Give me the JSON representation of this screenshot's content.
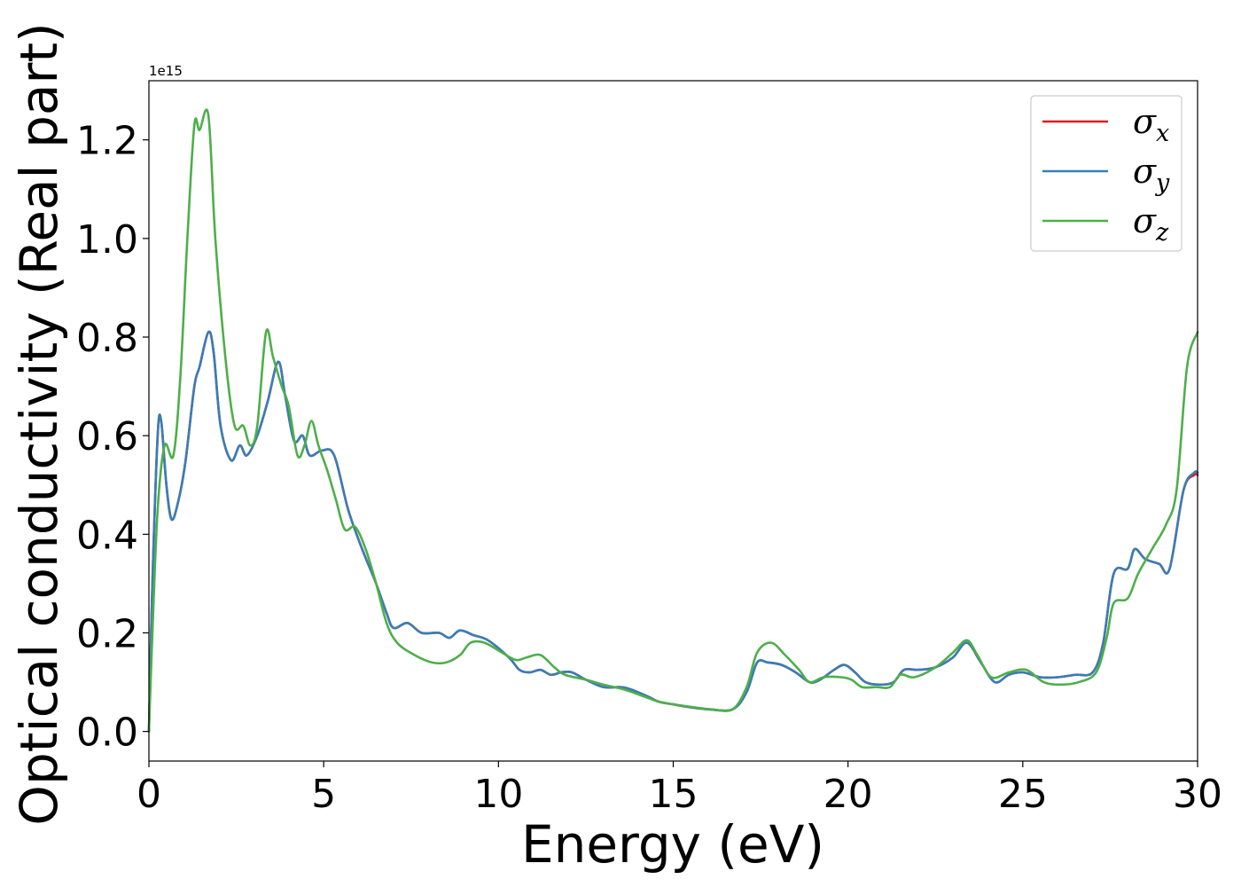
{
  "chart_data": {
    "type": "line",
    "title": "",
    "xlabel": "Energy (eV)",
    "ylabel": "Optical conductivity (Real part)",
    "y_offset_text": "1e15",
    "xlim": [
      0,
      30
    ],
    "ylim": [
      -0.06,
      1.32
    ],
    "xticks": [
      0,
      5,
      10,
      15,
      20,
      25,
      30
    ],
    "yticks": [
      0.0,
      0.2,
      0.4,
      0.6,
      0.8,
      1.0,
      1.2
    ],
    "xtick_labels": [
      "0",
      "5",
      "10",
      "15",
      "20",
      "25",
      "30"
    ],
    "ytick_labels": [
      "0.0",
      "0.2",
      "0.4",
      "0.6",
      "0.8",
      "1.0",
      "1.2"
    ],
    "grid": false,
    "legend_position": "top-right",
    "series": [
      {
        "name": "σx",
        "name_base": "σ",
        "name_sub": "x",
        "color": "#e41a1c",
        "points": [
          [
            0,
            0
          ],
          [
            0.1,
            0.3
          ],
          [
            0.25,
            0.6
          ],
          [
            0.35,
            0.63
          ],
          [
            0.5,
            0.5
          ],
          [
            0.65,
            0.43
          ],
          [
            0.85,
            0.47
          ],
          [
            1.05,
            0.55
          ],
          [
            1.3,
            0.7
          ],
          [
            1.45,
            0.74
          ],
          [
            1.7,
            0.81
          ],
          [
            1.85,
            0.77
          ],
          [
            2.05,
            0.62
          ],
          [
            2.35,
            0.55
          ],
          [
            2.6,
            0.58
          ],
          [
            2.8,
            0.56
          ],
          [
            3.1,
            0.6
          ],
          [
            3.4,
            0.67
          ],
          [
            3.7,
            0.75
          ],
          [
            3.9,
            0.68
          ],
          [
            4.15,
            0.59
          ],
          [
            4.4,
            0.6
          ],
          [
            4.6,
            0.56
          ],
          [
            4.95,
            0.57
          ],
          [
            5.3,
            0.56
          ],
          [
            5.7,
            0.45
          ],
          [
            6.1,
            0.37
          ],
          [
            6.5,
            0.3
          ],
          [
            6.8,
            0.24
          ],
          [
            7.0,
            0.21
          ],
          [
            7.4,
            0.22
          ],
          [
            7.8,
            0.2
          ],
          [
            8.3,
            0.2
          ],
          [
            8.6,
            0.19
          ],
          [
            8.9,
            0.205
          ],
          [
            9.3,
            0.195
          ],
          [
            9.7,
            0.185
          ],
          [
            10.3,
            0.15
          ],
          [
            10.6,
            0.125
          ],
          [
            10.9,
            0.12
          ],
          [
            11.2,
            0.125
          ],
          [
            11.5,
            0.115
          ],
          [
            11.8,
            0.12
          ],
          [
            12.1,
            0.12
          ],
          [
            12.5,
            0.105
          ],
          [
            13.0,
            0.09
          ],
          [
            13.5,
            0.09
          ],
          [
            13.8,
            0.085
          ],
          [
            14.3,
            0.07
          ],
          [
            14.6,
            0.06
          ],
          [
            15.0,
            0.055
          ],
          [
            15.4,
            0.05
          ],
          [
            16.0,
            0.045
          ],
          [
            16.7,
            0.045
          ],
          [
            17.1,
            0.08
          ],
          [
            17.4,
            0.14
          ],
          [
            17.7,
            0.14
          ],
          [
            18.1,
            0.135
          ],
          [
            18.5,
            0.12
          ],
          [
            18.9,
            0.1
          ],
          [
            19.2,
            0.105
          ],
          [
            19.6,
            0.125
          ],
          [
            19.9,
            0.135
          ],
          [
            20.2,
            0.12
          ],
          [
            20.5,
            0.1
          ],
          [
            20.9,
            0.095
          ],
          [
            21.3,
            0.1
          ],
          [
            21.6,
            0.125
          ],
          [
            22.0,
            0.125
          ],
          [
            22.5,
            0.13
          ],
          [
            23.0,
            0.15
          ],
          [
            23.4,
            0.18
          ],
          [
            23.8,
            0.14
          ],
          [
            24.2,
            0.1
          ],
          [
            24.6,
            0.115
          ],
          [
            25.0,
            0.12
          ],
          [
            25.5,
            0.11
          ],
          [
            26.0,
            0.11
          ],
          [
            26.5,
            0.115
          ],
          [
            27.0,
            0.12
          ],
          [
            27.3,
            0.18
          ],
          [
            27.6,
            0.32
          ],
          [
            28.0,
            0.33
          ],
          [
            28.2,
            0.37
          ],
          [
            28.5,
            0.35
          ],
          [
            28.9,
            0.34
          ],
          [
            29.2,
            0.33
          ],
          [
            29.6,
            0.49
          ],
          [
            29.9,
            0.52
          ],
          [
            30.0,
            0.52
          ]
        ]
      },
      {
        "name": "σy",
        "name_base": "σ",
        "name_sub": "y",
        "color": "#377eb8",
        "points": [
          [
            0,
            0
          ],
          [
            0.1,
            0.3
          ],
          [
            0.25,
            0.6
          ],
          [
            0.35,
            0.63
          ],
          [
            0.5,
            0.5
          ],
          [
            0.65,
            0.43
          ],
          [
            0.85,
            0.47
          ],
          [
            1.05,
            0.55
          ],
          [
            1.3,
            0.7
          ],
          [
            1.45,
            0.74
          ],
          [
            1.7,
            0.81
          ],
          [
            1.85,
            0.77
          ],
          [
            2.05,
            0.62
          ],
          [
            2.35,
            0.55
          ],
          [
            2.6,
            0.58
          ],
          [
            2.8,
            0.56
          ],
          [
            3.1,
            0.6
          ],
          [
            3.4,
            0.67
          ],
          [
            3.7,
            0.75
          ],
          [
            3.9,
            0.68
          ],
          [
            4.15,
            0.59
          ],
          [
            4.4,
            0.6
          ],
          [
            4.6,
            0.56
          ],
          [
            4.95,
            0.57
          ],
          [
            5.3,
            0.56
          ],
          [
            5.7,
            0.45
          ],
          [
            6.1,
            0.37
          ],
          [
            6.5,
            0.3
          ],
          [
            6.8,
            0.24
          ],
          [
            7.0,
            0.21
          ],
          [
            7.4,
            0.22
          ],
          [
            7.8,
            0.2
          ],
          [
            8.3,
            0.2
          ],
          [
            8.6,
            0.19
          ],
          [
            8.9,
            0.205
          ],
          [
            9.3,
            0.195
          ],
          [
            9.7,
            0.185
          ],
          [
            10.3,
            0.15
          ],
          [
            10.6,
            0.125
          ],
          [
            10.9,
            0.12
          ],
          [
            11.2,
            0.125
          ],
          [
            11.5,
            0.115
          ],
          [
            11.8,
            0.12
          ],
          [
            12.1,
            0.12
          ],
          [
            12.5,
            0.105
          ],
          [
            13.0,
            0.09
          ],
          [
            13.5,
            0.09
          ],
          [
            13.8,
            0.085
          ],
          [
            14.3,
            0.07
          ],
          [
            14.6,
            0.06
          ],
          [
            15.0,
            0.055
          ],
          [
            15.4,
            0.05
          ],
          [
            16.0,
            0.045
          ],
          [
            16.7,
            0.045
          ],
          [
            17.1,
            0.08
          ],
          [
            17.4,
            0.14
          ],
          [
            17.7,
            0.14
          ],
          [
            18.1,
            0.135
          ],
          [
            18.5,
            0.12
          ],
          [
            18.9,
            0.1
          ],
          [
            19.2,
            0.105
          ],
          [
            19.6,
            0.125
          ],
          [
            19.9,
            0.135
          ],
          [
            20.2,
            0.12
          ],
          [
            20.5,
            0.1
          ],
          [
            20.9,
            0.095
          ],
          [
            21.3,
            0.1
          ],
          [
            21.6,
            0.125
          ],
          [
            22.0,
            0.125
          ],
          [
            22.5,
            0.13
          ],
          [
            23.0,
            0.15
          ],
          [
            23.4,
            0.18
          ],
          [
            23.8,
            0.14
          ],
          [
            24.2,
            0.1
          ],
          [
            24.6,
            0.115
          ],
          [
            25.0,
            0.12
          ],
          [
            25.5,
            0.11
          ],
          [
            26.0,
            0.11
          ],
          [
            26.5,
            0.115
          ],
          [
            27.0,
            0.12
          ],
          [
            27.3,
            0.18
          ],
          [
            27.6,
            0.32
          ],
          [
            28.0,
            0.33
          ],
          [
            28.2,
            0.37
          ],
          [
            28.5,
            0.35
          ],
          [
            28.9,
            0.34
          ],
          [
            29.2,
            0.33
          ],
          [
            29.6,
            0.49
          ],
          [
            29.9,
            0.525
          ],
          [
            30.0,
            0.525
          ]
        ]
      },
      {
        "name": "σz",
        "name_base": "σ",
        "name_sub": "z",
        "color": "#4daf4a",
        "points": [
          [
            0,
            0
          ],
          [
            0.1,
            0.2
          ],
          [
            0.25,
            0.45
          ],
          [
            0.45,
            0.58
          ],
          [
            0.7,
            0.56
          ],
          [
            0.9,
            0.72
          ],
          [
            1.1,
            1.0
          ],
          [
            1.3,
            1.23
          ],
          [
            1.45,
            1.22
          ],
          [
            1.7,
            1.25
          ],
          [
            1.9,
            1.0
          ],
          [
            2.2,
            0.75
          ],
          [
            2.45,
            0.62
          ],
          [
            2.7,
            0.62
          ],
          [
            2.9,
            0.58
          ],
          [
            3.1,
            0.62
          ],
          [
            3.35,
            0.81
          ],
          [
            3.55,
            0.76
          ],
          [
            3.8,
            0.7
          ],
          [
            4.0,
            0.66
          ],
          [
            4.25,
            0.56
          ],
          [
            4.45,
            0.58
          ],
          [
            4.65,
            0.63
          ],
          [
            4.85,
            0.58
          ],
          [
            5.1,
            0.53
          ],
          [
            5.35,
            0.47
          ],
          [
            5.6,
            0.41
          ],
          [
            5.9,
            0.415
          ],
          [
            6.2,
            0.37
          ],
          [
            6.5,
            0.3
          ],
          [
            6.8,
            0.22
          ],
          [
            7.1,
            0.18
          ],
          [
            7.6,
            0.155
          ],
          [
            8.1,
            0.14
          ],
          [
            8.5,
            0.14
          ],
          [
            8.9,
            0.155
          ],
          [
            9.2,
            0.18
          ],
          [
            9.6,
            0.18
          ],
          [
            10.1,
            0.16
          ],
          [
            10.5,
            0.145
          ],
          [
            10.8,
            0.15
          ],
          [
            11.2,
            0.155
          ],
          [
            11.6,
            0.13
          ],
          [
            11.9,
            0.115
          ],
          [
            12.5,
            0.105
          ],
          [
            13.0,
            0.095
          ],
          [
            13.6,
            0.085
          ],
          [
            14.2,
            0.07
          ],
          [
            14.6,
            0.06
          ],
          [
            15.0,
            0.055
          ],
          [
            15.5,
            0.05
          ],
          [
            16.1,
            0.045
          ],
          [
            16.7,
            0.045
          ],
          [
            17.1,
            0.09
          ],
          [
            17.4,
            0.16
          ],
          [
            17.8,
            0.18
          ],
          [
            18.2,
            0.155
          ],
          [
            18.6,
            0.125
          ],
          [
            18.9,
            0.1
          ],
          [
            19.3,
            0.11
          ],
          [
            19.8,
            0.11
          ],
          [
            20.1,
            0.105
          ],
          [
            20.4,
            0.09
          ],
          [
            20.8,
            0.09
          ],
          [
            21.2,
            0.09
          ],
          [
            21.5,
            0.115
          ],
          [
            21.9,
            0.11
          ],
          [
            22.5,
            0.13
          ],
          [
            23.0,
            0.16
          ],
          [
            23.4,
            0.185
          ],
          [
            23.7,
            0.155
          ],
          [
            24.1,
            0.11
          ],
          [
            24.6,
            0.12
          ],
          [
            25.1,
            0.125
          ],
          [
            25.6,
            0.1
          ],
          [
            26.1,
            0.095
          ],
          [
            26.6,
            0.1
          ],
          [
            27.1,
            0.12
          ],
          [
            27.4,
            0.19
          ],
          [
            27.6,
            0.26
          ],
          [
            28.0,
            0.27
          ],
          [
            28.3,
            0.32
          ],
          [
            28.7,
            0.37
          ],
          [
            29.1,
            0.42
          ],
          [
            29.4,
            0.49
          ],
          [
            29.7,
            0.74
          ],
          [
            30.0,
            0.81
          ]
        ]
      }
    ]
  }
}
